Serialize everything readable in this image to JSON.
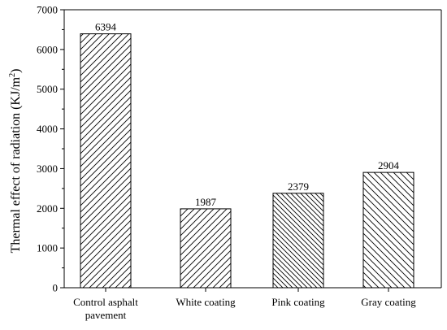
{
  "chart_data": {
    "type": "bar",
    "title": "",
    "xlabel": "",
    "ylabel": {
      "prefix": "Thermal effect of radiation (KJ/m",
      "superscript": "2",
      "suffix": ")"
    },
    "categories": [
      [
        "Control asphalt",
        "pavement"
      ],
      [
        "White coating"
      ],
      [
        "Pink coating"
      ],
      [
        "Gray coating"
      ]
    ],
    "values": [
      6394,
      1987,
      2379,
      2904
    ],
    "value_labels": [
      "6394",
      "1987",
      "2379",
      "2904"
    ],
    "ylim": [
      0,
      7000
    ],
    "yticks": [
      0,
      1000,
      2000,
      3000,
      4000,
      5000,
      6000,
      7000
    ],
    "grid": false,
    "legend": "none",
    "bar_fill": "#ffffff",
    "bar_stroke": "#000000",
    "hatch": [
      "forward-diagonal",
      "forward-diagonal",
      "backward-diagonal",
      "backward-diagonal"
    ],
    "hatch_spacing_rel": [
      1,
      1,
      0.75,
      1
    ]
  }
}
